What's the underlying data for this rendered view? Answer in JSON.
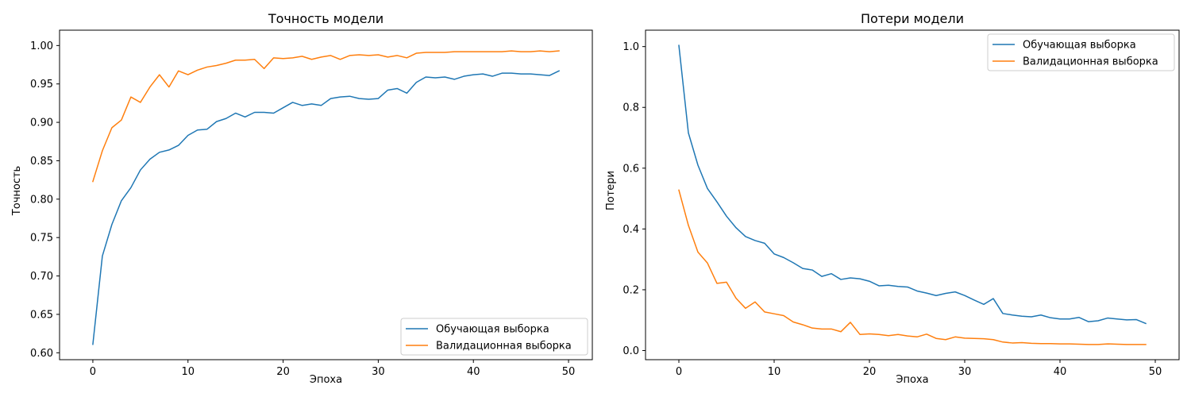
{
  "chart_data": [
    {
      "type": "line",
      "title": "Точность модели",
      "xlabel": "Эпоха",
      "ylabel": "Точность",
      "xlim": [
        -3.5,
        52.5
      ],
      "ylim": [
        0.591,
        1.02
      ],
      "xticks": [
        0,
        10,
        20,
        30,
        40,
        50
      ],
      "xtick_labels": [
        "0",
        "10",
        "20",
        "30",
        "40",
        "50"
      ],
      "yticks": [
        0.6,
        0.65,
        0.7,
        0.75,
        0.8,
        0.85,
        0.9,
        0.95,
        1.0
      ],
      "ytick_labels": [
        "0.60",
        "0.65",
        "0.70",
        "0.75",
        "0.80",
        "0.85",
        "0.90",
        "0.95",
        "1.00"
      ],
      "grid": false,
      "legend_position": "bottom-right",
      "series": [
        {
          "name": "Обучающая выборка",
          "color": "#1f77b4",
          "values": [
            0.611,
            0.726,
            0.767,
            0.798,
            0.815,
            0.838,
            0.852,
            0.861,
            0.864,
            0.87,
            0.883,
            0.89,
            0.891,
            0.901,
            0.905,
            0.912,
            0.907,
            0.913,
            0.913,
            0.912,
            0.919,
            0.926,
            0.922,
            0.924,
            0.922,
            0.931,
            0.933,
            0.934,
            0.931,
            0.93,
            0.931,
            0.942,
            0.944,
            0.938,
            0.952,
            0.959,
            0.958,
            0.959,
            0.956,
            0.96,
            0.962,
            0.963,
            0.96,
            0.964,
            0.964,
            0.963,
            0.963,
            0.962,
            0.961,
            0.967
          ]
        },
        {
          "name": "Валидационная выборка",
          "color": "#ff7f0e",
          "values": [
            0.823,
            0.863,
            0.893,
            0.903,
            0.933,
            0.926,
            0.946,
            0.962,
            0.946,
            0.967,
            0.962,
            0.968,
            0.972,
            0.974,
            0.977,
            0.981,
            0.981,
            0.982,
            0.97,
            0.984,
            0.983,
            0.984,
            0.986,
            0.982,
            0.985,
            0.987,
            0.982,
            0.987,
            0.988,
            0.987,
            0.988,
            0.985,
            0.987,
            0.984,
            0.99,
            0.991,
            0.991,
            0.991,
            0.992,
            0.992,
            0.992,
            0.992,
            0.992,
            0.992,
            0.993,
            0.992,
            0.992,
            0.993,
            0.992,
            0.993
          ]
        }
      ]
    },
    {
      "type": "line",
      "title": "Потери модели",
      "xlabel": "Эпоха",
      "ylabel": "Потери",
      "xlim": [
        -3.5,
        52.5
      ],
      "ylim": [
        -0.03,
        1.054
      ],
      "xticks": [
        0,
        10,
        20,
        30,
        40,
        50
      ],
      "xtick_labels": [
        "0",
        "10",
        "20",
        "30",
        "40",
        "50"
      ],
      "yticks": [
        0.0,
        0.2,
        0.4,
        0.6,
        0.8,
        1.0
      ],
      "ytick_labels": [
        "0.0",
        "0.2",
        "0.4",
        "0.6",
        "0.8",
        "1.0"
      ],
      "grid": false,
      "legend_position": "top-right",
      "series": [
        {
          "name": "Обучающая выборка",
          "color": "#1f77b4",
          "values": [
            1.004,
            0.716,
            0.61,
            0.533,
            0.489,
            0.442,
            0.404,
            0.375,
            0.362,
            0.353,
            0.318,
            0.306,
            0.289,
            0.27,
            0.265,
            0.244,
            0.253,
            0.234,
            0.239,
            0.236,
            0.228,
            0.213,
            0.215,
            0.211,
            0.209,
            0.196,
            0.189,
            0.181,
            0.188,
            0.193,
            0.181,
            0.166,
            0.152,
            0.171,
            0.122,
            0.117,
            0.113,
            0.111,
            0.117,
            0.108,
            0.104,
            0.104,
            0.109,
            0.095,
            0.098,
            0.107,
            0.104,
            0.101,
            0.102,
            0.089
          ]
        },
        {
          "name": "Валидационная выборка",
          "color": "#ff7f0e",
          "values": [
            0.528,
            0.412,
            0.324,
            0.288,
            0.221,
            0.225,
            0.172,
            0.139,
            0.16,
            0.127,
            0.121,
            0.115,
            0.094,
            0.085,
            0.074,
            0.071,
            0.071,
            0.062,
            0.093,
            0.053,
            0.055,
            0.053,
            0.049,
            0.053,
            0.048,
            0.045,
            0.054,
            0.04,
            0.036,
            0.045,
            0.041,
            0.04,
            0.039,
            0.036,
            0.028,
            0.025,
            0.026,
            0.024,
            0.023,
            0.023,
            0.022,
            0.022,
            0.021,
            0.02,
            0.02,
            0.022,
            0.021,
            0.02,
            0.02,
            0.02
          ]
        }
      ]
    }
  ]
}
